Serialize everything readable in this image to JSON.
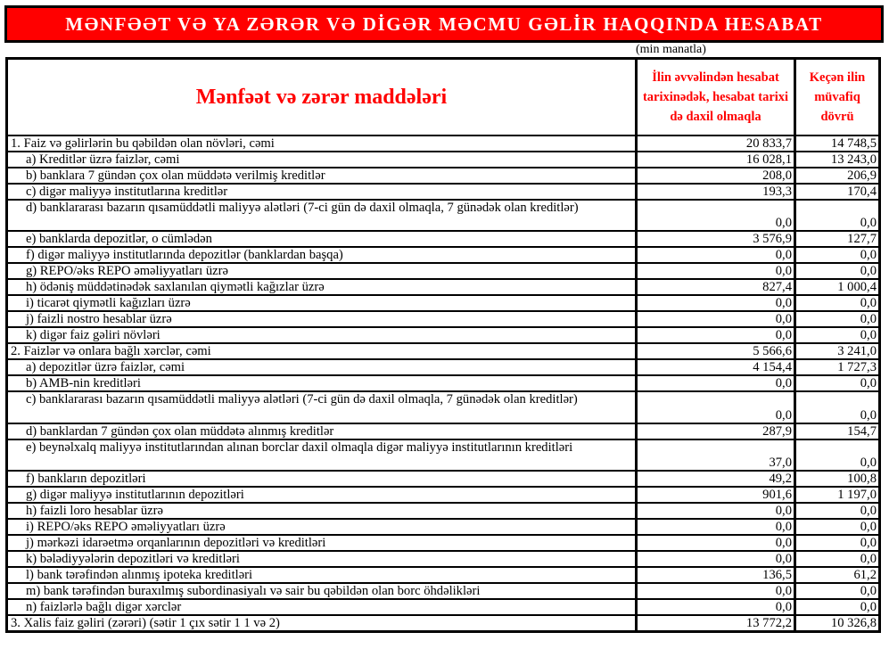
{
  "title": "MƏNFƏƏT VƏ YA ZƏRƏR VƏ DİGƏR MƏCMU GƏLİR HAQQINDA HESABAT",
  "unit": "(min manatla)",
  "colors": {
    "title_bg": "#ff0000",
    "header_text": "#ff0000",
    "section_text": "#ff0000"
  },
  "headers": {
    "items": "Mənfəət və zərər maddələri",
    "current": "İlin əvvəlindən hesabat tarixinədək, hesabat tarixi də daxil olmaqla",
    "previous": "Keçən ilin müvafiq dövrü"
  },
  "rows": [
    {
      "type": "section",
      "label": "1. Faiz və gəlirlərin bu qəbildən olan növləri, cəmi",
      "current": "20 833,7",
      "previous": "14 748,5"
    },
    {
      "type": "item",
      "label": "a) Kreditlər üzrə faizlər, cəmi",
      "current": "16 028,1",
      "previous": "13 243,0"
    },
    {
      "type": "item",
      "label": "b) banklara 7 gündən çox olan müddətə verilmiş kreditlər",
      "current": "208,0",
      "previous": "206,9"
    },
    {
      "type": "item",
      "label": "c) digər maliyyə institutlarına kreditlər",
      "current": "193,3",
      "previous": "170,4"
    },
    {
      "type": "item",
      "tall": true,
      "label": "d) banklararası bazarın qısamüddətli maliyyə alətləri (7-ci gün də daxil olmaqla, 7 günədək olan kreditlər)",
      "current": "0,0",
      "previous": "0,0"
    },
    {
      "type": "item",
      "label": "e) banklarda depozitlər, o cümlədən",
      "current": "3 576,9",
      "previous": "127,7"
    },
    {
      "type": "item",
      "label": "f) digər maliyyə institutlarında depozitlər (banklardan başqa)",
      "current": "0,0",
      "previous": "0,0"
    },
    {
      "type": "item",
      "label": "g) REPO/əks REPO əməliyyatları üzrə",
      "current": "0,0",
      "previous": "0,0"
    },
    {
      "type": "item",
      "label": "h) ödəniş müddətinədək saxlanılan qiymətli kağızlar üzrə",
      "current": "827,4",
      "previous": "1 000,4"
    },
    {
      "type": "item",
      "label": "i) ticarət qiymətli kağızları üzrə",
      "current": "0,0",
      "previous": "0,0"
    },
    {
      "type": "item",
      "label": "j) faizli nostro hesablar üzrə",
      "current": "0,0",
      "previous": "0,0"
    },
    {
      "type": "item",
      "label": "k) digər faiz gəliri növləri",
      "current": "0,0",
      "previous": "0,0"
    },
    {
      "type": "section",
      "label": "2. Faizlər və onlara bağlı xərclər, cəmi",
      "current": "5 566,6",
      "previous": "3 241,0"
    },
    {
      "type": "item",
      "label": "a) depozitlər üzrə faizlər, cəmi",
      "current": "4 154,4",
      "previous": "1 727,3"
    },
    {
      "type": "item",
      "label": "b) AMB-nin kreditləri",
      "current": "0,0",
      "previous": "0,0"
    },
    {
      "type": "item",
      "tall": true,
      "label": "c) banklararası bazarın qısamüddətli maliyyə alətləri (7-ci gün də daxil olmaqla, 7 günədək olan kreditlər)",
      "current": "0,0",
      "previous": "0,0"
    },
    {
      "type": "item",
      "label": "d) banklardan 7 gündən çox olan müddətə alınmış kreditlər",
      "current": "287,9",
      "previous": "154,7"
    },
    {
      "type": "item",
      "tall": true,
      "label": "e) beynəlxalq maliyyə institutlarından alınan borclar daxil olmaqla digər maliyyə institutlarının kreditləri",
      "current": "37,0",
      "previous": "0,0"
    },
    {
      "type": "item",
      "label": "f) bankların depozitləri",
      "current": "49,2",
      "previous": "100,8"
    },
    {
      "type": "item",
      "label": "g) digər maliyyə institutlarının depozitləri",
      "current": "901,6",
      "previous": "1 197,0"
    },
    {
      "type": "item",
      "label": "h) faizli loro hesablar üzrə",
      "current": "0,0",
      "previous": "0,0"
    },
    {
      "type": "item",
      "label": "i) REPO/əks REPO əməliyyatları üzrə",
      "current": "0,0",
      "previous": "0,0"
    },
    {
      "type": "item",
      "label": "j) mərkəzi idarəetmə orqanlarının depozitləri və kreditləri",
      "current": "0,0",
      "previous": "0,0"
    },
    {
      "type": "item",
      "label": "k) bələdiyyələrin depozitləri və kreditləri",
      "current": "0,0",
      "previous": "0,0"
    },
    {
      "type": "item",
      "label": "l) bank tərəfindən alınmış ipoteka kreditləri",
      "current": "136,5",
      "previous": "61,2"
    },
    {
      "type": "item",
      "label": "m) bank tərəfindən buraxılmış subordinasiyalı və sair bu qəbildən olan borc öhdəlikləri",
      "current": "0,0",
      "previous": "0,0"
    },
    {
      "type": "item",
      "label": "n) faizlərlə bağlı digər xərclər",
      "current": "0,0",
      "previous": "0,0"
    },
    {
      "type": "section",
      "label": "3. Xalis faiz gəliri (zərəri) (sətir 1 çıx sətir 1  1 və 2)",
      "current": "13 772,2",
      "previous": "10 326,8"
    }
  ]
}
